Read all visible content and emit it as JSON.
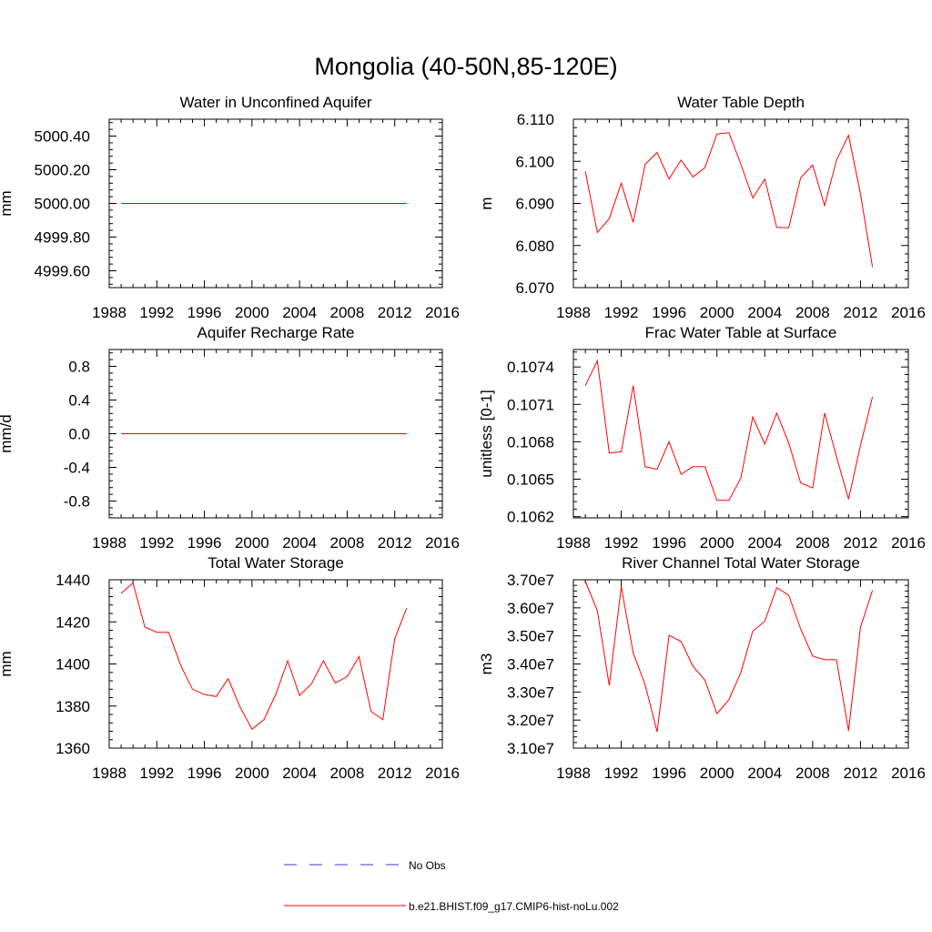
{
  "figure": {
    "title": "Mongolia (40-50N,85-120E)"
  },
  "legend": {
    "placement": "bottom-center",
    "entries": [
      {
        "label": "No Obs",
        "color": "#3a3acc",
        "dash": "dashed"
      },
      {
        "label": "b.e21.BHIST.f09_g17.CMIP6-hist-noLu.002",
        "color": "#ff0000",
        "dash": "solid"
      }
    ]
  },
  "chart_data": [
    {
      "type": "line",
      "title": "Water in Unconfined Aquifer",
      "ylabel": "mm",
      "xlim": [
        1988,
        2016
      ],
      "ylim": [
        4999.5,
        5000.5
      ],
      "xticks": [
        1988,
        1992,
        1996,
        2000,
        2004,
        2008,
        2012,
        2016
      ],
      "xtick_labels": [
        "1988",
        "1992",
        "1996",
        "2000",
        "2004",
        "2008",
        "2012",
        "2016"
      ],
      "yticks": [
        4999.6,
        4999.8,
        5000.0,
        5000.2,
        5000.4
      ],
      "ytick_labels": [
        "4999.60",
        "4999.80",
        "5000.00",
        "5000.20",
        "5000.40"
      ],
      "x": [
        1989,
        1990,
        1991,
        1992,
        1993,
        1994,
        1995,
        1996,
        1997,
        1998,
        1999,
        2000,
        2001,
        2002,
        2003,
        2004,
        2005,
        2006,
        2007,
        2008,
        2009,
        2010,
        2011,
        2012,
        2013
      ],
      "series": [
        {
          "color": "#ff0000",
          "values": [
            5000,
            5000,
            5000,
            5000,
            5000,
            5000,
            5000,
            5000,
            5000,
            5000,
            5000,
            5000,
            5000,
            5000,
            5000,
            5000,
            5000,
            5000,
            5000,
            5000,
            5000,
            5000,
            5000,
            5000,
            5000
          ]
        }
      ]
    },
    {
      "type": "line",
      "title": "Water Table Depth",
      "ylabel": "m",
      "xlim": [
        1988,
        2016
      ],
      "ylim": [
        6.07,
        6.11
      ],
      "xticks": [
        1988,
        1992,
        1996,
        2000,
        2004,
        2008,
        2012,
        2016
      ],
      "xtick_labels": [
        "1988",
        "1992",
        "1996",
        "2000",
        "2004",
        "2008",
        "2012",
        "2016"
      ],
      "yticks": [
        6.07,
        6.08,
        6.09,
        6.1,
        6.11
      ],
      "ytick_labels": [
        "6.070",
        "6.080",
        "6.090",
        "6.100",
        "6.110"
      ],
      "x": [
        1989,
        1990,
        1991,
        1992,
        1993,
        1994,
        1995,
        1996,
        1997,
        1998,
        1999,
        2000,
        2001,
        2002,
        2003,
        2004,
        2005,
        2006,
        2007,
        2008,
        2009,
        2010,
        2011,
        2012,
        2013
      ],
      "series": [
        {
          "color": "#ff0000",
          "values": [
            6.0976,
            6.0831,
            6.0864,
            6.0948,
            6.0855,
            6.0993,
            6.1021,
            6.0958,
            6.1003,
            6.0963,
            6.0985,
            6.1065,
            6.1068,
            6.0993,
            6.0913,
            6.0958,
            6.0843,
            6.0842,
            6.0961,
            6.0991,
            6.0895,
            6.1003,
            6.1062,
            6.0923,
            6.0749
          ]
        }
      ]
    },
    {
      "type": "line",
      "title": "Aquifer Recharge Rate",
      "ylabel": "mm/d",
      "xlim": [
        1988,
        2016
      ],
      "ylim": [
        -1.0,
        1.0
      ],
      "xticks": [
        1988,
        1992,
        1996,
        2000,
        2004,
        2008,
        2012,
        2016
      ],
      "xtick_labels": [
        "1988",
        "1992",
        "1996",
        "2000",
        "2004",
        "2008",
        "2012",
        "2016"
      ],
      "yticks": [
        -0.8,
        -0.4,
        0.0,
        0.4,
        0.8
      ],
      "ytick_labels": [
        "-0.8",
        "-0.4",
        "0.0",
        "0.4",
        "0.8"
      ],
      "x": [
        1989,
        1990,
        1991,
        1992,
        1993,
        1994,
        1995,
        1996,
        1997,
        1998,
        1999,
        2000,
        2001,
        2002,
        2003,
        2004,
        2005,
        2006,
        2007,
        2008,
        2009,
        2010,
        2011,
        2012,
        2013
      ],
      "series": [
        {
          "color": "#ff0000",
          "values": [
            0,
            0,
            0,
            0,
            0,
            0,
            0,
            0,
            0,
            0,
            0,
            0,
            0,
            0,
            0,
            0,
            0,
            0,
            0,
            0,
            0,
            0,
            0,
            0,
            0
          ]
        }
      ]
    },
    {
      "type": "line",
      "title": "Frac Water Table at Surface",
      "ylabel": "unitless [0-1]",
      "xlim": [
        1988,
        2016
      ],
      "ylim": [
        0.10619,
        0.10754
      ],
      "xticks": [
        1988,
        1992,
        1996,
        2000,
        2004,
        2008,
        2012,
        2016
      ],
      "xtick_labels": [
        "1988",
        "1992",
        "1996",
        "2000",
        "2004",
        "2008",
        "2012",
        "2016"
      ],
      "yticks": [
        0.1062,
        0.1065,
        0.1068,
        0.1071,
        0.1074
      ],
      "ytick_labels": [
        "0.1062",
        "0.1065",
        "0.1068",
        "0.1071",
        "0.1074"
      ],
      "x": [
        1989,
        1990,
        1991,
        1992,
        1993,
        1994,
        1995,
        1996,
        1997,
        1998,
        1999,
        2000,
        2001,
        2002,
        2003,
        2004,
        2005,
        2006,
        2007,
        2008,
        2009,
        2010,
        2011,
        2012,
        2013
      ],
      "series": [
        {
          "color": "#ff0000",
          "values": [
            0.10725,
            0.10745,
            0.10671,
            0.10672,
            0.10725,
            0.1066,
            0.10658,
            0.1068,
            0.10654,
            0.1066,
            0.1066,
            0.10633,
            0.10633,
            0.10651,
            0.107,
            0.10678,
            0.10703,
            0.10679,
            0.10647,
            0.10643,
            0.10703,
            0.10668,
            0.10634,
            0.10677,
            0.10716
          ]
        }
      ]
    },
    {
      "type": "line",
      "title": "Total Water Storage",
      "ylabel": "mm",
      "xlim": [
        1988,
        2016
      ],
      "ylim": [
        1360,
        1440
      ],
      "xticks": [
        1988,
        1992,
        1996,
        2000,
        2004,
        2008,
        2012,
        2016
      ],
      "xtick_labels": [
        "1988",
        "1992",
        "1996",
        "2000",
        "2004",
        "2008",
        "2012",
        "2016"
      ],
      "yticks": [
        1360,
        1380,
        1400,
        1420,
        1440
      ],
      "ytick_labels": [
        "1360",
        "1380",
        "1400",
        "1420",
        "1440"
      ],
      "x": [
        1989,
        1990,
        1991,
        1992,
        1993,
        1994,
        1995,
        1996,
        1997,
        1998,
        1999,
        2000,
        2001,
        2002,
        2003,
        2004,
        2005,
        2006,
        2007,
        2008,
        2009,
        2010,
        2011,
        2012,
        2013
      ],
      "series": [
        {
          "color": "#ff0000",
          "values": [
            1433.5,
            1438.5,
            1417.5,
            1415,
            1415,
            1399.5,
            1388,
            1385.5,
            1384.5,
            1393,
            1379.5,
            1369,
            1373.5,
            1385.5,
            1401.5,
            1385,
            1390.5,
            1401.5,
            1391,
            1394,
            1403.5,
            1377.5,
            1373.5,
            1412,
            1426.5
          ]
        }
      ]
    },
    {
      "type": "line",
      "title": "River Channel Total Water Storage",
      "ylabel": "m3",
      "xlim": [
        1988,
        2016
      ],
      "ylim": [
        31000000,
        37000000
      ],
      "xticks": [
        1988,
        1992,
        1996,
        2000,
        2004,
        2008,
        2012,
        2016
      ],
      "xtick_labels": [
        "1988",
        "1992",
        "1996",
        "2000",
        "2004",
        "2008",
        "2012",
        "2016"
      ],
      "yticks": [
        31000000,
        32000000,
        33000000,
        34000000,
        35000000,
        36000000,
        37000000
      ],
      "ytick_labels": [
        "3.10e7",
        "3.20e7",
        "3.30e7",
        "3.40e7",
        "3.50e7",
        "3.60e7",
        "3.70e7"
      ],
      "x": [
        1989,
        1990,
        1991,
        1992,
        1993,
        1994,
        1995,
        1996,
        1997,
        1998,
        1999,
        2000,
        2001,
        2002,
        2003,
        2004,
        2005,
        2006,
        2007,
        2008,
        2009,
        2010,
        2011,
        2012,
        2013
      ],
      "series": [
        {
          "color": "#ff0000",
          "values": [
            36950000,
            35900000,
            33230000,
            36750000,
            34400000,
            33250000,
            31580000,
            35020000,
            34800000,
            33920000,
            33420000,
            32230000,
            32730000,
            33700000,
            35170000,
            35520000,
            36720000,
            36450000,
            35250000,
            34280000,
            34150000,
            34150000,
            31620000,
            35300000,
            36620000
          ]
        }
      ]
    }
  ]
}
